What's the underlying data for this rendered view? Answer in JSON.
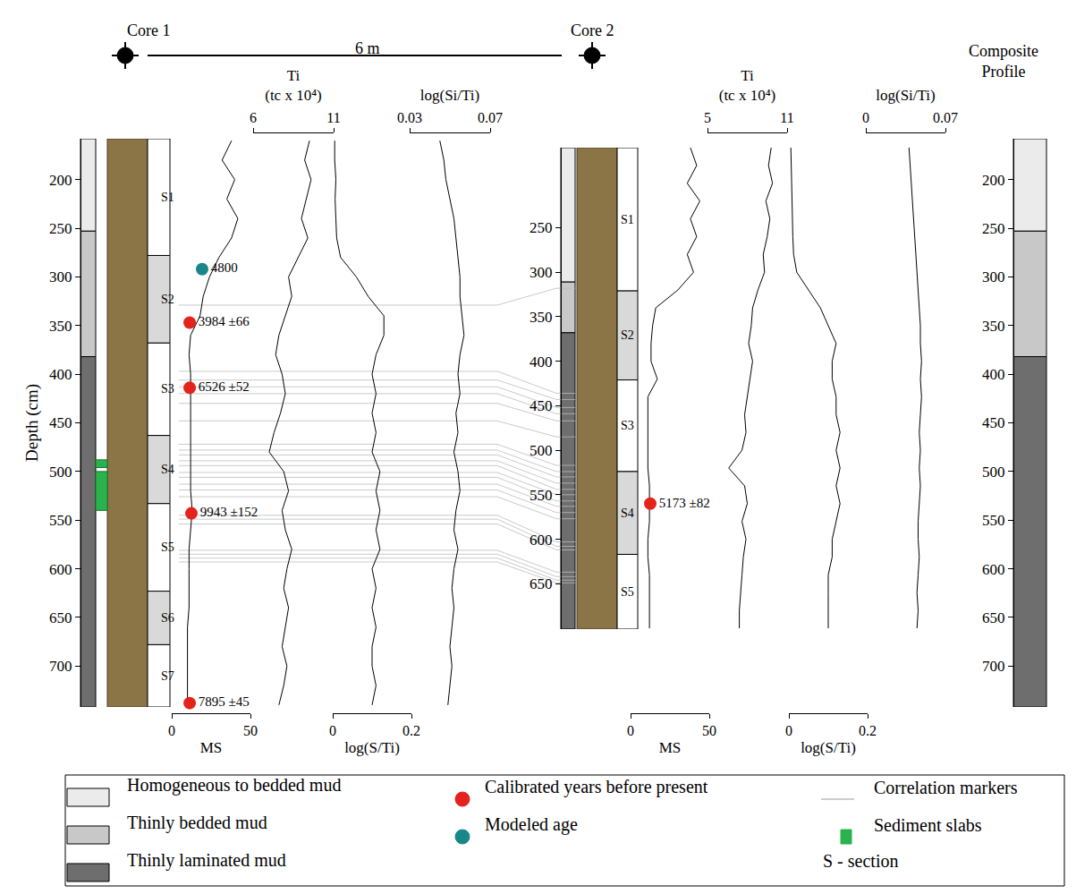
{
  "chart_data": {
    "type": "correlation",
    "header": {
      "core1": "Core 1",
      "core2": "Core 2",
      "composite": "Composite\nProfile",
      "spacing": "6 m"
    },
    "facies": [
      {
        "name": "Homogeneous to bedded mud",
        "color": "#ebebeb"
      },
      {
        "name": "Thinly bedded mud",
        "color": "#c8c8c8"
      },
      {
        "name": "Thinly laminated mud",
        "color": "#6e6e6e"
      }
    ],
    "symbols": {
      "calibrated": {
        "label": "Calibrated years before present",
        "color": "#e3231c",
        "marker": "circle"
      },
      "modeled": {
        "label": "Modeled age",
        "color": "#17878a",
        "marker": "circle"
      },
      "correlation": {
        "label": "Correlation markers",
        "color": "#bdbdbd",
        "marker": "line"
      },
      "slabs": {
        "label": "Sediment slabs",
        "color": "#2bb24c",
        "marker": "square"
      },
      "section": {
        "label": "S - section",
        "marker": "none"
      }
    },
    "cores": [
      {
        "name": "Core 1",
        "ylabel": "Depth (cm)",
        "ylim": [
          742,
          158
        ],
        "yticks": [
          200,
          250,
          300,
          350,
          400,
          450,
          500,
          550,
          600,
          650,
          700
        ],
        "lithology": [
          {
            "facies": "Homogeneous to bedded mud",
            "top": 158,
            "bottom": 253
          },
          {
            "facies": "Thinly bedded mud",
            "top": 253,
            "bottom": 382
          },
          {
            "facies": "Thinly laminated mud",
            "top": 382,
            "bottom": 742
          }
        ],
        "sections": [
          {
            "label": "S1",
            "top": 158,
            "bottom": 278
          },
          {
            "label": "S2",
            "top": 278,
            "bottom": 368
          },
          {
            "label": "S3",
            "top": 368,
            "bottom": 463
          },
          {
            "label": "S4",
            "top": 463,
            "bottom": 533
          },
          {
            "label": "S5",
            "top": 533,
            "bottom": 623
          },
          {
            "label": "S6",
            "top": 623,
            "bottom": 678
          },
          {
            "label": "S7",
            "top": 678,
            "bottom": 742
          }
        ],
        "slabs": [
          [
            488,
            496
          ],
          [
            500,
            540
          ]
        ],
        "dates": [
          {
            "depth": 292,
            "ms": 19.3,
            "label": "4800",
            "kind": "modeled"
          },
          {
            "depth": 347,
            "ms": 11.4,
            "label": "3984 ±66",
            "kind": "calibrated"
          },
          {
            "depth": 414,
            "ms": 11.4,
            "label": "6526 ±52",
            "kind": "calibrated"
          },
          {
            "depth": 543,
            "ms": 12.5,
            "label": "9943 ±152",
            "kind": "calibrated"
          },
          {
            "depth": 738,
            "ms": 11.4,
            "label": "7895 ±45",
            "kind": "calibrated"
          }
        ],
        "depth": [
          160,
          180,
          200,
          220,
          240,
          260,
          280,
          300,
          320,
          340,
          360,
          380,
          400,
          420,
          440,
          460,
          480,
          500,
          520,
          540,
          560,
          580,
          600,
          620,
          640,
          660,
          680,
          700,
          720,
          740
        ],
        "logs": [
          {
            "title": "MS",
            "xlim": [
              0,
              50
            ],
            "xticks": [
              0,
              50
            ],
            "values": [
              38,
              32,
              40,
              35,
              42,
              38,
              30,
              24,
              20,
              18,
              12,
              11,
              12,
              12,
              12,
              12,
              12,
              12,
              12,
              13,
              12,
              11,
              11,
              11,
              11,
              10,
              10,
              10,
              10,
              10
            ]
          },
          {
            "title": "Ti\n(tc x 10⁴)",
            "xlim": [
              6,
              11
            ],
            "xticks": [
              6,
              11
            ],
            "values": [
              9.5,
              9.2,
              9.6,
              9.3,
              9.0,
              9.4,
              8.8,
              8.2,
              8.4,
              8.0,
              7.6,
              7.4,
              7.8,
              8.0,
              7.7,
              7.3,
              7.0,
              7.9,
              8.2,
              7.8,
              8.0,
              8.4,
              8.1,
              7.9,
              8.2,
              8.0,
              7.8,
              8.1,
              7.9,
              7.6
            ]
          },
          {
            "title": "log(S/Ti)",
            "xlim": [
              0,
              0.2
            ],
            "xticks": [
              0,
              0.2
            ],
            "values": [
              0.005,
              0.005,
              0.008,
              0.006,
              0.008,
              0.01,
              0.02,
              0.06,
              0.09,
              0.13,
              0.13,
              0.11,
              0.1,
              0.11,
              0.1,
              0.11,
              0.1,
              0.12,
              0.11,
              0.12,
              0.11,
              0.12,
              0.1,
              0.11,
              0.1,
              0.11,
              0.1,
              0.1,
              0.11,
              0.1
            ]
          },
          {
            "title": "log(Si/Ti)",
            "xlim": [
              0.03,
              0.07
            ],
            "xticks": [
              0.03,
              0.07
            ],
            "values": [
              0.045,
              0.047,
              0.048,
              0.05,
              0.052,
              0.053,
              0.054,
              0.055,
              0.055,
              0.056,
              0.057,
              0.055,
              0.054,
              0.055,
              0.053,
              0.054,
              0.052,
              0.054,
              0.055,
              0.053,
              0.052,
              0.054,
              0.052,
              0.051,
              0.052,
              0.051,
              0.05,
              0.051,
              0.05,
              0.049
            ]
          }
        ]
      },
      {
        "name": "Core 2",
        "ylim": [
          701,
          160
        ],
        "yticks": [
          250,
          300,
          350,
          400,
          450,
          500,
          550,
          600,
          650
        ],
        "lithology": [
          {
            "facies": "Homogeneous to bedded mud",
            "top": 160,
            "bottom": 311
          },
          {
            "facies": "Thinly bedded mud",
            "top": 311,
            "bottom": 368
          },
          {
            "facies": "Thinly laminated mud",
            "top": 368,
            "bottom": 701
          }
        ],
        "sections": [
          {
            "label": "S1",
            "top": 160,
            "bottom": 321
          },
          {
            "label": "S2",
            "top": 321,
            "bottom": 421
          },
          {
            "label": "S3",
            "top": 421,
            "bottom": 524
          },
          {
            "label": "S4",
            "top": 524,
            "bottom": 617
          },
          {
            "label": "S5",
            "top": 617,
            "bottom": 701
          }
        ],
        "slabs": [],
        "dates": [
          {
            "depth": 560,
            "ms": 12.5,
            "label": "5173 ±82",
            "kind": "calibrated"
          }
        ],
        "depth": [
          160,
          180,
          200,
          220,
          240,
          260,
          280,
          300,
          320,
          340,
          360,
          380,
          400,
          420,
          440,
          460,
          480,
          500,
          520,
          540,
          560,
          580,
          600,
          620,
          640,
          660,
          680,
          700
        ],
        "logs": [
          {
            "title": "MS",
            "xlim": [
              0,
              50
            ],
            "xticks": [
              0,
              50
            ],
            "values": [
              38,
              42,
              36,
              44,
              38,
              42,
              36,
              40,
              30,
              16,
              14,
              13,
              13,
              17,
              11,
              11,
              11,
              11,
              11,
              12,
              12,
              12,
              11,
              11,
              12,
              12,
              12,
              12
            ]
          },
          {
            "title": "Ti\n(tc x 10⁴)",
            "xlim": [
              5,
              11
            ],
            "xticks": [
              5,
              11
            ],
            "values": [
              9.8,
              9.6,
              9.9,
              9.4,
              9.7,
              9.5,
              9.2,
              9.3,
              8.8,
              8.4,
              8.3,
              8.1,
              8.4,
              8.2,
              8.0,
              7.8,
              7.9,
              7.6,
              6.6,
              7.8,
              8.0,
              7.6,
              7.9,
              7.7,
              7.6,
              7.5,
              7.4,
              7.4
            ]
          },
          {
            "title": "log(S/Ti)",
            "xlim": [
              0,
              0.2
            ],
            "xticks": [
              0,
              0.2
            ],
            "values": [
              0.005,
              0.006,
              0.006,
              0.008,
              0.008,
              0.01,
              0.012,
              0.02,
              0.05,
              0.08,
              0.1,
              0.12,
              0.11,
              0.11,
              0.12,
              0.12,
              0.13,
              0.12,
              0.13,
              0.12,
              0.13,
              0.12,
              0.11,
              0.11,
              0.1,
              0.1,
              0.1,
              0.1
            ]
          },
          {
            "title": "log(Si/Ti)",
            "xlim": [
              0,
              0.07
            ],
            "xticks": [
              0,
              0.07
            ],
            "values": [
              0.038,
              0.039,
              0.04,
              0.041,
              0.042,
              0.043,
              0.044,
              0.045,
              0.046,
              0.047,
              0.048,
              0.048,
              0.049,
              0.048,
              0.049,
              0.048,
              0.047,
              0.048,
              0.047,
              0.048,
              0.047,
              0.046,
              0.046,
              0.047,
              0.046,
              0.045,
              0.046,
              0.045
            ]
          }
        ]
      }
    ],
    "composite": {
      "ylim": [
        742,
        158
      ],
      "yticks": [
        200,
        250,
        300,
        350,
        400,
        450,
        500,
        550,
        600,
        650,
        700
      ],
      "lithology": [
        {
          "facies": "Homogeneous to bedded mud",
          "top": 158,
          "bottom": 253
        },
        {
          "facies": "Thinly bedded mud",
          "top": 253,
          "bottom": 382
        },
        {
          "facies": "Thinly laminated mud",
          "top": 382,
          "bottom": 742
        }
      ]
    },
    "correlations": [
      [
        329,
        318
      ],
      [
        397,
        436
      ],
      [
        406,
        443
      ],
      [
        413,
        452
      ],
      [
        420,
        459
      ],
      [
        430,
        467
      ],
      [
        448,
        485
      ],
      [
        472,
        517
      ],
      [
        478,
        524
      ],
      [
        483,
        530
      ],
      [
        489,
        537
      ],
      [
        494,
        544
      ],
      [
        501,
        550
      ],
      [
        506,
        557
      ],
      [
        513,
        563
      ],
      [
        519,
        570
      ],
      [
        526,
        577
      ],
      [
        545,
        603
      ],
      [
        549,
        608
      ],
      [
        554,
        612
      ],
      [
        581,
        637
      ],
      [
        585,
        642
      ],
      [
        589,
        646
      ],
      [
        593,
        649
      ]
    ]
  }
}
